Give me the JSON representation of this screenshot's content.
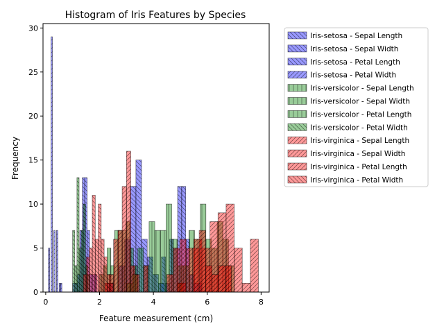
{
  "chart_data": {
    "type": "bar",
    "subtype": "histogram",
    "title": "Histogram of Iris Features by Species",
    "xlabel": "Feature measurement (cm)",
    "ylabel": "Frequency",
    "xlim": [
      -0.1,
      8.3
    ],
    "ylim": [
      0,
      30.5
    ],
    "xticks": [
      0,
      2,
      4,
      6,
      8
    ],
    "yticks": [
      0,
      5,
      10,
      15,
      20,
      25,
      30
    ],
    "grid": false,
    "legend_position": "outside-right",
    "bins_per_series": 10,
    "series": [
      {
        "name": "Iris-setosa - Sepal Length",
        "species": "Iris-setosa",
        "color": "#0000ff",
        "hatch": "\\",
        "range": [
          4.3,
          5.8
        ],
        "values": [
          4,
          1,
          6,
          5,
          12,
          12,
          6,
          2,
          1,
          1
        ]
      },
      {
        "name": "Iris-setosa - Sepal Width",
        "species": "Iris-setosa",
        "color": "#0000ff",
        "hatch": "\\",
        "range": [
          2.3,
          4.4
        ],
        "values": [
          1,
          0,
          3,
          6,
          12,
          15,
          6,
          4,
          2,
          1
        ]
      },
      {
        "name": "Iris-setosa - Petal Length",
        "species": "Iris-setosa",
        "color": "#0000ff",
        "hatch": "\\",
        "range": [
          1.0,
          1.9
        ],
        "values": [
          1,
          1,
          2,
          7,
          13,
          13,
          7,
          2,
          2,
          2
        ]
      },
      {
        "name": "Iris-setosa - Petal Width",
        "species": "Iris-setosa",
        "color": "#0000ff",
        "hatch": "/",
        "range": [
          0.1,
          0.6
        ],
        "values": [
          5,
          0,
          29,
          0,
          7,
          0,
          7,
          0,
          1,
          1
        ]
      },
      {
        "name": "Iris-versicolor - Sepal Length",
        "species": "Iris-versicolor",
        "color": "#008000",
        "hatch": "|",
        "range": [
          4.9,
          7.0
        ],
        "values": [
          3,
          3,
          7,
          6,
          10,
          6,
          5,
          8,
          6,
          3
        ]
      },
      {
        "name": "Iris-versicolor - Sepal Width",
        "species": "Iris-versicolor",
        "color": "#008000",
        "hatch": "|",
        "range": [
          2.0,
          3.4
        ],
        "values": [
          2,
          3,
          5,
          3,
          7,
          7,
          7,
          8,
          5,
          3
        ]
      },
      {
        "name": "Iris-versicolor - Petal Length",
        "species": "Iris-versicolor",
        "color": "#008000",
        "hatch": "|",
        "range": [
          3.0,
          5.1
        ],
        "values": [
          1,
          2,
          5,
          3,
          8,
          7,
          7,
          10,
          6,
          1
        ]
      },
      {
        "name": "Iris-versicolor - Petal Width",
        "species": "Iris-versicolor",
        "color": "#008000",
        "hatch": "\\",
        "range": [
          1.0,
          1.8
        ],
        "values": [
          7,
          3,
          13,
          5,
          7,
          10,
          3,
          2,
          0,
          0
        ]
      },
      {
        "name": "Iris-virginica - Sepal Length",
        "species": "Iris-virginica",
        "color": "#ff0000",
        "hatch": "/",
        "range": [
          4.9,
          7.9
        ],
        "values": [
          1,
          0,
          6,
          5,
          8,
          9,
          10,
          5,
          1,
          6
        ]
      },
      {
        "name": "Iris-virginica - Sepal Width",
        "species": "Iris-virginica",
        "color": "#ff0000",
        "hatch": "/",
        "range": [
          2.2,
          3.8
        ],
        "values": [
          1,
          2,
          6,
          7,
          12,
          16,
          3,
          2,
          0,
          3
        ]
      },
      {
        "name": "Iris-virginica - Petal Length",
        "species": "Iris-virginica",
        "color": "#ff0000",
        "hatch": "/",
        "range": [
          4.5,
          6.9
        ],
        "values": [
          2,
          5,
          6,
          5,
          5,
          7,
          3,
          2,
          3,
          3
        ]
      },
      {
        "name": "Iris-virginica - Petal Width",
        "species": "Iris-virginica",
        "color": "#ff0000",
        "hatch": "\\",
        "range": [
          1.4,
          2.5
        ],
        "values": [
          2,
          4,
          5,
          11,
          6,
          10,
          6,
          4,
          2,
          1
        ]
      }
    ]
  }
}
